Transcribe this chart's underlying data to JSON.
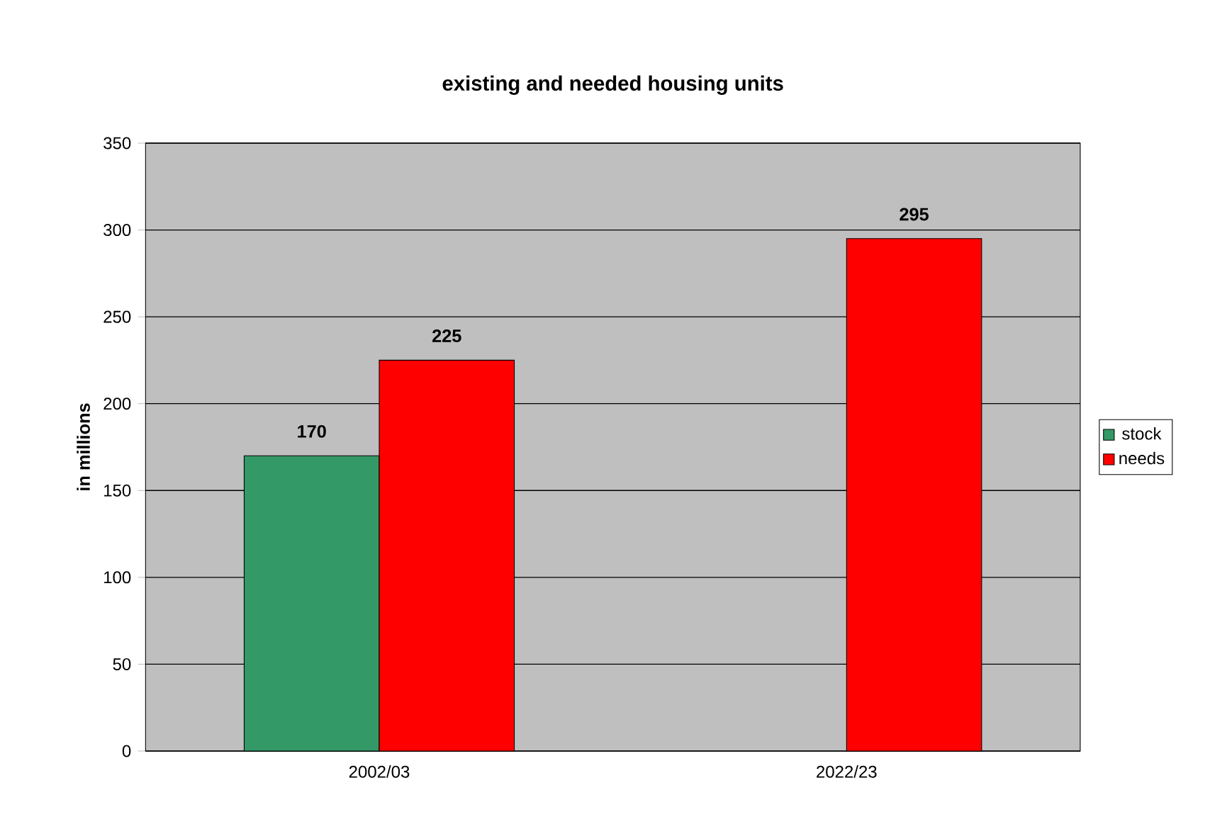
{
  "chart_data": {
    "type": "bar",
    "title": "existing and needed housing units",
    "ylabel": "in millions",
    "categories": [
      "2002/03",
      "2022/23"
    ],
    "series": [
      {
        "name": "stock",
        "color": "#339966",
        "values": [
          170,
          null
        ]
      },
      {
        "name": "needs",
        "color": "#ff0000",
        "values": [
          225,
          295
        ]
      }
    ],
    "ylim": [
      0,
      350
    ],
    "yticks": [
      0,
      50,
      100,
      150,
      200,
      250,
      300,
      350
    ],
    "grid": "y",
    "legend": "right",
    "data_labels": true
  }
}
